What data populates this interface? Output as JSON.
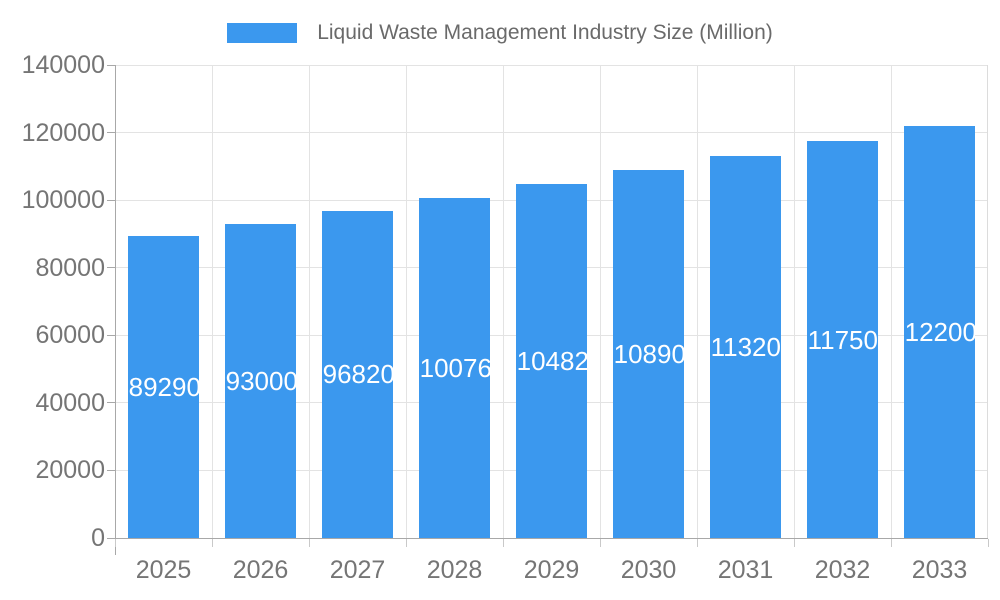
{
  "legend": {
    "label": "Liquid Waste Management Industry Size (Million)"
  },
  "colors": {
    "bar": "#3b98ee",
    "bar_label": "#ffffff",
    "legend_text": "#6a6a6a",
    "axis_text": "#757575",
    "gridline": "#e3e3e3",
    "plot_border": "#dcdcdc",
    "axis_line": "#a8a8a8",
    "category_tick": "#c9c9c9",
    "background": "#ffffff"
  },
  "chart_data": {
    "type": "bar",
    "title": "Liquid Waste Management Industry Size (Million)",
    "categories": [
      "2025",
      "2026",
      "2027",
      "2028",
      "2029",
      "2030",
      "2031",
      "2032",
      "2033"
    ],
    "values": [
      89290,
      93000,
      96820,
      100760,
      104820,
      108900,
      113200,
      117500,
      122000
    ],
    "xlabel": "",
    "ylabel": "",
    "ylim": [
      0,
      140000
    ],
    "yticks": [
      0,
      20000,
      40000,
      60000,
      80000,
      100000,
      120000,
      140000
    ],
    "grid": true,
    "legend_position": "top",
    "bar_value_labels": "inside-center",
    "bar_label_color": "#ffffff"
  }
}
